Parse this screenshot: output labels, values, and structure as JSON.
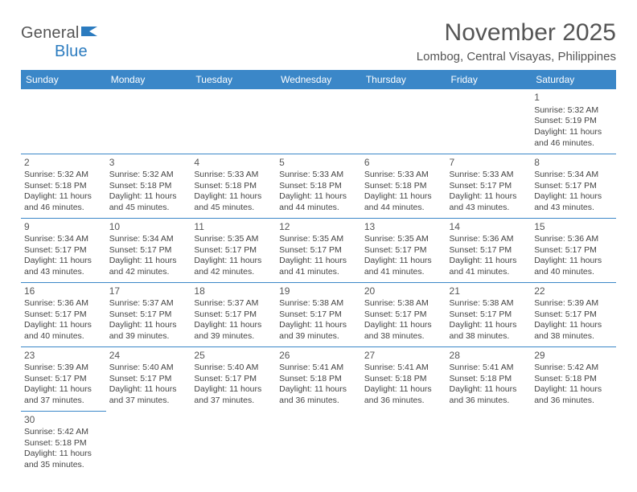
{
  "logo": {
    "general": "General",
    "blue": "Blue"
  },
  "title": "November 2025",
  "location": "Lombog, Central Visayas, Philippines",
  "colors": {
    "header_bg": "#3b87c8",
    "header_text": "#ffffff",
    "cell_border": "#3b87c8",
    "text": "#444444",
    "title_text": "#555555",
    "logo_gray": "#555555",
    "logo_blue": "#2b7bbf",
    "background": "#ffffff"
  },
  "weekdays": [
    "Sunday",
    "Monday",
    "Tuesday",
    "Wednesday",
    "Thursday",
    "Friday",
    "Saturday"
  ],
  "weeks": [
    [
      null,
      null,
      null,
      null,
      null,
      null,
      {
        "n": "1",
        "sr": "Sunrise: 5:32 AM",
        "ss": "Sunset: 5:19 PM",
        "d1": "Daylight: 11 hours",
        "d2": "and 46 minutes."
      }
    ],
    [
      {
        "n": "2",
        "sr": "Sunrise: 5:32 AM",
        "ss": "Sunset: 5:18 PM",
        "d1": "Daylight: 11 hours",
        "d2": "and 46 minutes."
      },
      {
        "n": "3",
        "sr": "Sunrise: 5:32 AM",
        "ss": "Sunset: 5:18 PM",
        "d1": "Daylight: 11 hours",
        "d2": "and 45 minutes."
      },
      {
        "n": "4",
        "sr": "Sunrise: 5:33 AM",
        "ss": "Sunset: 5:18 PM",
        "d1": "Daylight: 11 hours",
        "d2": "and 45 minutes."
      },
      {
        "n": "5",
        "sr": "Sunrise: 5:33 AM",
        "ss": "Sunset: 5:18 PM",
        "d1": "Daylight: 11 hours",
        "d2": "and 44 minutes."
      },
      {
        "n": "6",
        "sr": "Sunrise: 5:33 AM",
        "ss": "Sunset: 5:18 PM",
        "d1": "Daylight: 11 hours",
        "d2": "and 44 minutes."
      },
      {
        "n": "7",
        "sr": "Sunrise: 5:33 AM",
        "ss": "Sunset: 5:17 PM",
        "d1": "Daylight: 11 hours",
        "d2": "and 43 minutes."
      },
      {
        "n": "8",
        "sr": "Sunrise: 5:34 AM",
        "ss": "Sunset: 5:17 PM",
        "d1": "Daylight: 11 hours",
        "d2": "and 43 minutes."
      }
    ],
    [
      {
        "n": "9",
        "sr": "Sunrise: 5:34 AM",
        "ss": "Sunset: 5:17 PM",
        "d1": "Daylight: 11 hours",
        "d2": "and 43 minutes."
      },
      {
        "n": "10",
        "sr": "Sunrise: 5:34 AM",
        "ss": "Sunset: 5:17 PM",
        "d1": "Daylight: 11 hours",
        "d2": "and 42 minutes."
      },
      {
        "n": "11",
        "sr": "Sunrise: 5:35 AM",
        "ss": "Sunset: 5:17 PM",
        "d1": "Daylight: 11 hours",
        "d2": "and 42 minutes."
      },
      {
        "n": "12",
        "sr": "Sunrise: 5:35 AM",
        "ss": "Sunset: 5:17 PM",
        "d1": "Daylight: 11 hours",
        "d2": "and 41 minutes."
      },
      {
        "n": "13",
        "sr": "Sunrise: 5:35 AM",
        "ss": "Sunset: 5:17 PM",
        "d1": "Daylight: 11 hours",
        "d2": "and 41 minutes."
      },
      {
        "n": "14",
        "sr": "Sunrise: 5:36 AM",
        "ss": "Sunset: 5:17 PM",
        "d1": "Daylight: 11 hours",
        "d2": "and 41 minutes."
      },
      {
        "n": "15",
        "sr": "Sunrise: 5:36 AM",
        "ss": "Sunset: 5:17 PM",
        "d1": "Daylight: 11 hours",
        "d2": "and 40 minutes."
      }
    ],
    [
      {
        "n": "16",
        "sr": "Sunrise: 5:36 AM",
        "ss": "Sunset: 5:17 PM",
        "d1": "Daylight: 11 hours",
        "d2": "and 40 minutes."
      },
      {
        "n": "17",
        "sr": "Sunrise: 5:37 AM",
        "ss": "Sunset: 5:17 PM",
        "d1": "Daylight: 11 hours",
        "d2": "and 39 minutes."
      },
      {
        "n": "18",
        "sr": "Sunrise: 5:37 AM",
        "ss": "Sunset: 5:17 PM",
        "d1": "Daylight: 11 hours",
        "d2": "and 39 minutes."
      },
      {
        "n": "19",
        "sr": "Sunrise: 5:38 AM",
        "ss": "Sunset: 5:17 PM",
        "d1": "Daylight: 11 hours",
        "d2": "and 39 minutes."
      },
      {
        "n": "20",
        "sr": "Sunrise: 5:38 AM",
        "ss": "Sunset: 5:17 PM",
        "d1": "Daylight: 11 hours",
        "d2": "and 38 minutes."
      },
      {
        "n": "21",
        "sr": "Sunrise: 5:38 AM",
        "ss": "Sunset: 5:17 PM",
        "d1": "Daylight: 11 hours",
        "d2": "and 38 minutes."
      },
      {
        "n": "22",
        "sr": "Sunrise: 5:39 AM",
        "ss": "Sunset: 5:17 PM",
        "d1": "Daylight: 11 hours",
        "d2": "and 38 minutes."
      }
    ],
    [
      {
        "n": "23",
        "sr": "Sunrise: 5:39 AM",
        "ss": "Sunset: 5:17 PM",
        "d1": "Daylight: 11 hours",
        "d2": "and 37 minutes."
      },
      {
        "n": "24",
        "sr": "Sunrise: 5:40 AM",
        "ss": "Sunset: 5:17 PM",
        "d1": "Daylight: 11 hours",
        "d2": "and 37 minutes."
      },
      {
        "n": "25",
        "sr": "Sunrise: 5:40 AM",
        "ss": "Sunset: 5:17 PM",
        "d1": "Daylight: 11 hours",
        "d2": "and 37 minutes."
      },
      {
        "n": "26",
        "sr": "Sunrise: 5:41 AM",
        "ss": "Sunset: 5:18 PM",
        "d1": "Daylight: 11 hours",
        "d2": "and 36 minutes."
      },
      {
        "n": "27",
        "sr": "Sunrise: 5:41 AM",
        "ss": "Sunset: 5:18 PM",
        "d1": "Daylight: 11 hours",
        "d2": "and 36 minutes."
      },
      {
        "n": "28",
        "sr": "Sunrise: 5:41 AM",
        "ss": "Sunset: 5:18 PM",
        "d1": "Daylight: 11 hours",
        "d2": "and 36 minutes."
      },
      {
        "n": "29",
        "sr": "Sunrise: 5:42 AM",
        "ss": "Sunset: 5:18 PM",
        "d1": "Daylight: 11 hours",
        "d2": "and 36 minutes."
      }
    ],
    [
      {
        "n": "30",
        "sr": "Sunrise: 5:42 AM",
        "ss": "Sunset: 5:18 PM",
        "d1": "Daylight: 11 hours",
        "d2": "and 35 minutes."
      },
      null,
      null,
      null,
      null,
      null,
      null
    ]
  ]
}
